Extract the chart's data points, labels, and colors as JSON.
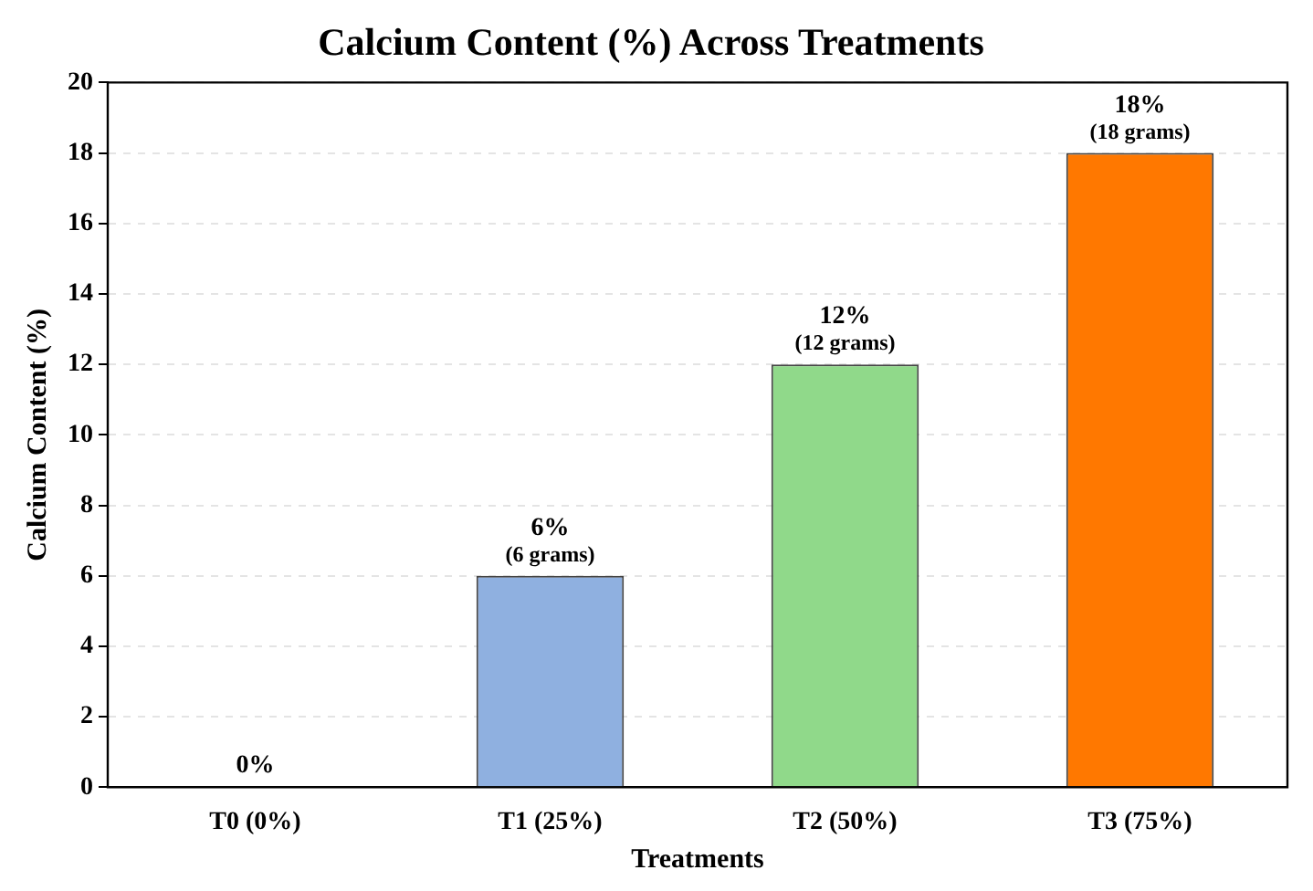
{
  "chart_data": {
    "type": "bar",
    "title": "Calcium Content (%) Across Treatments",
    "xlabel": "Treatments",
    "ylabel": "Calcium Content (%)",
    "categories": [
      "T0 (0%)",
      "T1 (25%)",
      "T2 (50%)",
      "T3 (75%)"
    ],
    "values": [
      0,
      6,
      12,
      18
    ],
    "colors": [
      "#b0b0b0",
      "#8fb0e0",
      "#90d98a",
      "#ff7800"
    ],
    "value_labels": [
      "0%",
      "6%\n(6 grams)",
      "12%\n(12 grams)",
      "18%\n(18 grams)"
    ],
    "ylim": [
      0,
      20
    ],
    "yticks": [
      0,
      2,
      4,
      6,
      8,
      10,
      12,
      14,
      16,
      18,
      20
    ],
    "grid": "y"
  }
}
